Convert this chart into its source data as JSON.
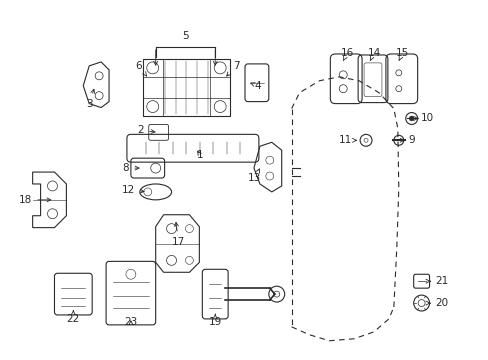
{
  "background": "#ffffff",
  "figsize": [
    4.89,
    3.6
  ],
  "dpi": 100,
  "gray": "#2a2a2a",
  "lw": 0.8
}
